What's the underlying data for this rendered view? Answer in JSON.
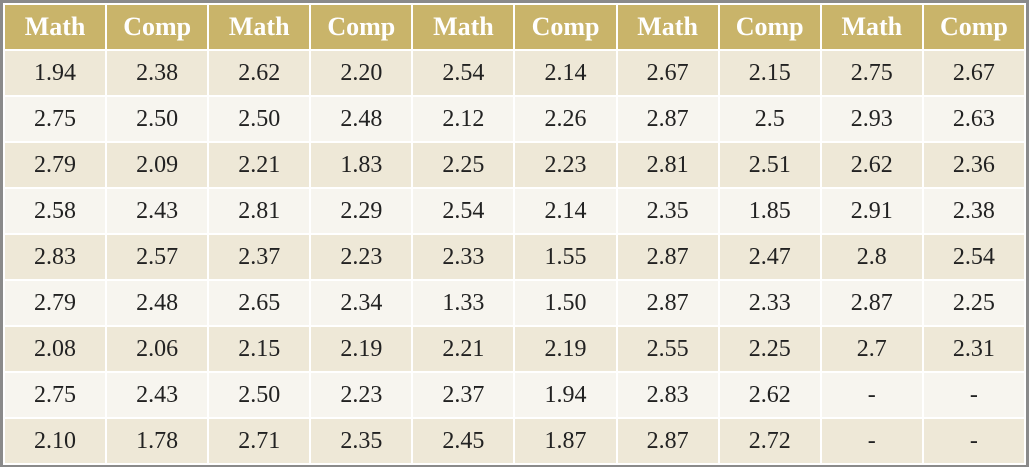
{
  "table": {
    "header": [
      "Math",
      "Comp",
      "Math",
      "Comp",
      "Math",
      "Comp",
      "Math",
      "Comp",
      "Math",
      "Comp"
    ],
    "rows": [
      [
        "1.94",
        "2.38",
        "2.62",
        "2.20",
        "2.54",
        "2.14",
        "2.67",
        "2.15",
        "2.75",
        "2.67"
      ],
      [
        "2.75",
        "2.50",
        "2.50",
        "2.48",
        "2.12",
        "2.26",
        "2.87",
        "2.5",
        "2.93",
        "2.63"
      ],
      [
        "2.79",
        "2.09",
        "2.21",
        "1.83",
        "2.25",
        "2.23",
        "2.81",
        "2.51",
        "2.62",
        "2.36"
      ],
      [
        "2.58",
        "2.43",
        "2.81",
        "2.29",
        "2.54",
        "2.14",
        "2.35",
        "1.85",
        "2.91",
        "2.38"
      ],
      [
        "2.83",
        "2.57",
        "2.37",
        "2.23",
        "2.33",
        "1.55",
        "2.87",
        "2.47",
        "2.8",
        "2.54"
      ],
      [
        "2.79",
        "2.48",
        "2.65",
        "2.34",
        "1.33",
        "1.50",
        "2.87",
        "2.33",
        "2.87",
        "2.25"
      ],
      [
        "2.08",
        "2.06",
        "2.15",
        "2.19",
        "2.21",
        "2.19",
        "2.55",
        "2.25",
        "2.7",
        "2.31"
      ],
      [
        "2.75",
        "2.43",
        "2.50",
        "2.23",
        "2.37",
        "1.94",
        "2.83",
        "2.62",
        "-",
        "-"
      ],
      [
        "2.10",
        "1.78",
        "2.71",
        "2.35",
        "2.45",
        "1.87",
        "2.87",
        "2.72",
        "-",
        "-"
      ]
    ]
  }
}
